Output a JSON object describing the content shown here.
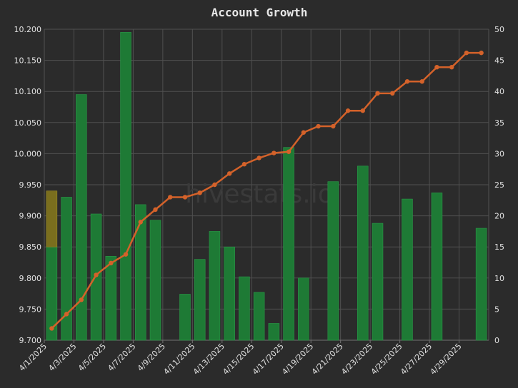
{
  "chart_data": {
    "type": "bar+line",
    "title": "Account Growth",
    "watermark": "hivestats.io",
    "categories": [
      "4/1/2025",
      "4/2/2025",
      "4/3/2025",
      "4/4/2025",
      "4/5/2025",
      "4/6/2025",
      "4/7/2025",
      "4/8/2025",
      "4/9/2025",
      "4/10/2025",
      "4/11/2025",
      "4/12/2025",
      "4/13/2025",
      "4/14/2025",
      "4/15/2025",
      "4/16/2025",
      "4/17/2025",
      "4/18/2025",
      "4/19/2025",
      "4/20/2025",
      "4/21/2025",
      "4/22/2025",
      "4/23/2025",
      "4/24/2025",
      "4/25/2025",
      "4/26/2025",
      "4/27/2025",
      "4/28/2025",
      "4/29/2025",
      "4/30/2025"
    ],
    "x_tick_labels": [
      "4/1/2025",
      "4/3/2025",
      "4/5/2025",
      "4/7/2025",
      "4/9/2025",
      "4/11/2025",
      "4/13/2025",
      "4/15/2025",
      "4/17/2025",
      "4/19/2025",
      "4/21/2025",
      "4/23/2025",
      "4/25/2025",
      "4/27/2025",
      "4/29/2025"
    ],
    "y_left": {
      "ylim": [
        9.7,
        10.2
      ],
      "ticks": [
        "9.700",
        "9.750",
        "9.800",
        "9.850",
        "9.900",
        "9.950",
        "10.000",
        "10.050",
        "10.100",
        "10.150",
        "10.200"
      ]
    },
    "y_right": {
      "ylim": [
        0,
        50
      ],
      "ticks": [
        "0",
        "5",
        "10",
        "15",
        "20",
        "25",
        "30",
        "35",
        "40",
        "45",
        "50"
      ]
    },
    "grid": true,
    "series": [
      {
        "type": "bar",
        "axis": "right",
        "color": "#1e7a35",
        "values": [
          15,
          23,
          39.5,
          20.3,
          13.5,
          49.5,
          21.8,
          19.3,
          0,
          7.4,
          13,
          17.5,
          15,
          10.2,
          7.7,
          2.7,
          31,
          10,
          0,
          25.5,
          0,
          28,
          18.8,
          0,
          22.7,
          0,
          23.7,
          0,
          0,
          18
        ],
        "highlight": {
          "index": 0,
          "color": "#7a6e1e",
          "from": 15,
          "to": 24
        }
      },
      {
        "type": "line",
        "axis": "left",
        "color": "#d4622a",
        "values": [
          9.719,
          9.742,
          9.765,
          9.805,
          9.824,
          9.838,
          9.89,
          9.91,
          9.93,
          9.93,
          9.937,
          9.95,
          9.968,
          9.983,
          9.993,
          10.001,
          10.003,
          10.034,
          10.044,
          10.044,
          10.069,
          10.069,
          10.097,
          10.097,
          10.116,
          10.116,
          10.139,
          10.139,
          10.162,
          10.162
        ]
      }
    ]
  }
}
